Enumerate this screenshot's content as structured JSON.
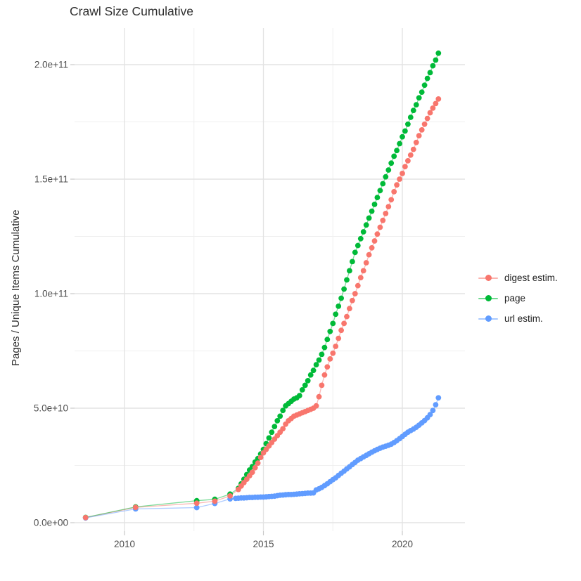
{
  "title": "Crawl Size Cumulative",
  "axes": {
    "y_label": "Pages / Unique Items Cumulative",
    "y_ticks": [
      {
        "label": "0.0e+00",
        "value_e9": 0
      },
      {
        "label": "5.0e+10",
        "value_e9": 50
      },
      {
        "label": "1.0e+11",
        "value_e9": 100
      },
      {
        "label": "1.5e+11",
        "value_e9": 150
      },
      {
        "label": "2.0e+11",
        "value_e9": 200
      }
    ],
    "y_minor_ticks_e9": [
      25,
      75,
      125,
      175
    ],
    "x_ticks": [
      {
        "label": "2010",
        "value": 2010
      },
      {
        "label": "2015",
        "value": 2015
      },
      {
        "label": "2020",
        "value": 2020
      }
    ],
    "x_minor_ticks": [
      2012.5,
      2017.5
    ]
  },
  "legend": {
    "items": [
      {
        "label": "digest estim."
      },
      {
        "label": "page"
      },
      {
        "label": "url estim."
      }
    ]
  },
  "style": {
    "grid_major_color": "#e3e3e3",
    "grid_minor_color": "#efefef",
    "tick_color": "#c9c9c9",
    "tick_label_color": "#4d4d4d",
    "title_color": "#2f2f2f",
    "background": "#ffffff",
    "line_opacity": 0.5,
    "point_radius": 3.9
  },
  "chart_data": {
    "type": "scatter",
    "title": "Crawl Size Cumulative",
    "xlabel": "",
    "ylabel": "Pages / Unique Items Cumulative",
    "x_unit": "year (decimal)",
    "y_unit_multiplier": 1000000000,
    "y_unit_note": "point y-values are in billions (multiply by 1e9)",
    "xlim": [
      2008.2,
      2022.25
    ],
    "ylim_e9": [
      -4,
      216
    ],
    "grid": true,
    "legend_position": "right",
    "series": [
      {
        "name": "digest estim.",
        "color": "#F8766D",
        "points": [
          [
            2008.6,
            2.2
          ],
          [
            2010.4,
            6.7
          ],
          [
            2012.6,
            8.5
          ],
          [
            2013.25,
            9.4
          ],
          [
            2013.8,
            11.7
          ],
          [
            2014.1,
            14.5
          ],
          [
            2014.2,
            16
          ],
          [
            2014.3,
            17.5
          ],
          [
            2014.4,
            19
          ],
          [
            2014.5,
            20.5
          ],
          [
            2014.6,
            22
          ],
          [
            2014.7,
            24
          ],
          [
            2014.8,
            26
          ],
          [
            2014.9,
            28.5
          ],
          [
            2015.0,
            30.5
          ],
          [
            2015.1,
            32
          ],
          [
            2015.2,
            33.5
          ],
          [
            2015.3,
            35
          ],
          [
            2015.4,
            36.5
          ],
          [
            2015.5,
            38
          ],
          [
            2015.6,
            39.5
          ],
          [
            2015.7,
            41
          ],
          [
            2015.8,
            43
          ],
          [
            2015.9,
            44.5
          ],
          [
            2016.0,
            45.5
          ],
          [
            2016.1,
            46.5
          ],
          [
            2016.2,
            47
          ],
          [
            2016.3,
            47.5
          ],
          [
            2016.4,
            48
          ],
          [
            2016.5,
            48.5
          ],
          [
            2016.6,
            49
          ],
          [
            2016.7,
            49.5
          ],
          [
            2016.8,
            50
          ],
          [
            2016.9,
            51
          ],
          [
            2017.0,
            55
          ],
          [
            2017.1,
            60
          ],
          [
            2017.2,
            64.5
          ],
          [
            2017.3,
            68
          ],
          [
            2017.4,
            71.5
          ],
          [
            2017.5,
            74
          ],
          [
            2017.6,
            77
          ],
          [
            2017.7,
            80.5
          ],
          [
            2017.8,
            84
          ],
          [
            2017.9,
            87
          ],
          [
            2018.0,
            90
          ],
          [
            2018.1,
            93.5
          ],
          [
            2018.2,
            97
          ],
          [
            2018.3,
            100
          ],
          [
            2018.4,
            103.5
          ],
          [
            2018.5,
            107
          ],
          [
            2018.6,
            110
          ],
          [
            2018.7,
            113.5
          ],
          [
            2018.8,
            117
          ],
          [
            2018.9,
            120
          ],
          [
            2019.0,
            123
          ],
          [
            2019.1,
            126
          ],
          [
            2019.2,
            129
          ],
          [
            2019.3,
            132
          ],
          [
            2019.4,
            135
          ],
          [
            2019.5,
            138
          ],
          [
            2019.6,
            141
          ],
          [
            2019.7,
            144.5
          ],
          [
            2019.8,
            147.5
          ],
          [
            2019.9,
            150
          ],
          [
            2020.0,
            152.5
          ],
          [
            2020.1,
            155.5
          ],
          [
            2020.2,
            158
          ],
          [
            2020.3,
            160.5
          ],
          [
            2020.4,
            163
          ],
          [
            2020.5,
            166
          ],
          [
            2020.6,
            169
          ],
          [
            2020.7,
            171.5
          ],
          [
            2020.8,
            174
          ],
          [
            2020.9,
            176.5
          ],
          [
            2021.0,
            179
          ],
          [
            2021.1,
            181
          ],
          [
            2021.2,
            183
          ],
          [
            2021.3,
            185
          ]
        ]
      },
      {
        "name": "page",
        "color": "#00BA38",
        "points": [
          [
            2008.6,
            2.3
          ],
          [
            2010.4,
            6.9
          ],
          [
            2012.6,
            9.6
          ],
          [
            2013.25,
            10.2
          ],
          [
            2013.8,
            12.5
          ],
          [
            2014.1,
            15
          ],
          [
            2014.2,
            17
          ],
          [
            2014.3,
            19
          ],
          [
            2014.4,
            21
          ],
          [
            2014.5,
            23
          ],
          [
            2014.6,
            24.5
          ],
          [
            2014.7,
            26.5
          ],
          [
            2014.8,
            28
          ],
          [
            2014.9,
            30
          ],
          [
            2015.0,
            32
          ],
          [
            2015.1,
            34.5
          ],
          [
            2015.2,
            37
          ],
          [
            2015.3,
            39.5
          ],
          [
            2015.4,
            42
          ],
          [
            2015.5,
            44.5
          ],
          [
            2015.6,
            46.5
          ],
          [
            2015.7,
            49
          ],
          [
            2015.8,
            51
          ],
          [
            2015.9,
            52
          ],
          [
            2016.0,
            53
          ],
          [
            2016.1,
            54
          ],
          [
            2016.2,
            54.5
          ],
          [
            2016.3,
            55.5
          ],
          [
            2016.4,
            58
          ],
          [
            2016.5,
            60
          ],
          [
            2016.6,
            62
          ],
          [
            2016.7,
            64.5
          ],
          [
            2016.8,
            66.5
          ],
          [
            2016.9,
            69
          ],
          [
            2017.0,
            71
          ],
          [
            2017.1,
            73.5
          ],
          [
            2017.2,
            76.5
          ],
          [
            2017.3,
            80
          ],
          [
            2017.4,
            83.5
          ],
          [
            2017.5,
            87
          ],
          [
            2017.6,
            91
          ],
          [
            2017.7,
            94.5
          ],
          [
            2017.8,
            98
          ],
          [
            2017.9,
            102
          ],
          [
            2018.0,
            106
          ],
          [
            2018.1,
            110
          ],
          [
            2018.2,
            114
          ],
          [
            2018.3,
            118
          ],
          [
            2018.4,
            121
          ],
          [
            2018.5,
            124
          ],
          [
            2018.6,
            127
          ],
          [
            2018.7,
            130
          ],
          [
            2018.8,
            133
          ],
          [
            2018.9,
            136
          ],
          [
            2019.0,
            139
          ],
          [
            2019.1,
            142
          ],
          [
            2019.2,
            145
          ],
          [
            2019.3,
            148
          ],
          [
            2019.4,
            151
          ],
          [
            2019.5,
            154
          ],
          [
            2019.6,
            157
          ],
          [
            2019.7,
            160
          ],
          [
            2019.8,
            162.5
          ],
          [
            2019.9,
            165.5
          ],
          [
            2020.0,
            168.5
          ],
          [
            2020.1,
            171
          ],
          [
            2020.2,
            174
          ],
          [
            2020.3,
            177
          ],
          [
            2020.4,
            180
          ],
          [
            2020.5,
            182.5
          ],
          [
            2020.6,
            185.5
          ],
          [
            2020.7,
            188
          ],
          [
            2020.8,
            191
          ],
          [
            2020.9,
            194
          ],
          [
            2021.0,
            196.5
          ],
          [
            2021.1,
            199.5
          ],
          [
            2021.2,
            202
          ],
          [
            2021.3,
            205
          ]
        ]
      },
      {
        "name": "url estim.",
        "color": "#619CFF",
        "points": [
          [
            2008.6,
            2.1
          ],
          [
            2010.4,
            6.0
          ],
          [
            2012.6,
            6.6
          ],
          [
            2013.25,
            8.4
          ],
          [
            2013.8,
            10.4
          ],
          [
            2014.0,
            10.6
          ],
          [
            2014.1,
            10.7
          ],
          [
            2014.2,
            10.8
          ],
          [
            2014.3,
            10.8
          ],
          [
            2014.4,
            10.9
          ],
          [
            2014.5,
            11.0
          ],
          [
            2014.6,
            11.0
          ],
          [
            2014.7,
            11.1
          ],
          [
            2014.8,
            11.1
          ],
          [
            2014.9,
            11.2
          ],
          [
            2015.0,
            11.2
          ],
          [
            2015.1,
            11.3
          ],
          [
            2015.2,
            11.4
          ],
          [
            2015.3,
            11.5
          ],
          [
            2015.4,
            11.6
          ],
          [
            2015.5,
            11.8
          ],
          [
            2015.6,
            12.0
          ],
          [
            2015.7,
            12.1
          ],
          [
            2015.8,
            12.2
          ],
          [
            2015.9,
            12.3
          ],
          [
            2016.0,
            12.3
          ],
          [
            2016.1,
            12.4
          ],
          [
            2016.2,
            12.5
          ],
          [
            2016.3,
            12.6
          ],
          [
            2016.4,
            12.7
          ],
          [
            2016.5,
            12.8
          ],
          [
            2016.6,
            12.9
          ],
          [
            2016.7,
            12.9
          ],
          [
            2016.8,
            13.0
          ],
          [
            2016.9,
            14.3
          ],
          [
            2017.0,
            14.8
          ],
          [
            2017.1,
            15.4
          ],
          [
            2017.2,
            16.2
          ],
          [
            2017.3,
            17.0
          ],
          [
            2017.4,
            17.9
          ],
          [
            2017.5,
            18.8
          ],
          [
            2017.6,
            19.6
          ],
          [
            2017.7,
            20.6
          ],
          [
            2017.8,
            21.6
          ],
          [
            2017.9,
            22.5
          ],
          [
            2018.0,
            23.5
          ],
          [
            2018.1,
            24.4
          ],
          [
            2018.2,
            25.4
          ],
          [
            2018.3,
            26.3
          ],
          [
            2018.4,
            27.3
          ],
          [
            2018.5,
            28.0
          ],
          [
            2018.6,
            28.7
          ],
          [
            2018.7,
            29.4
          ],
          [
            2018.8,
            30.1
          ],
          [
            2018.9,
            30.8
          ],
          [
            2019.0,
            31.4
          ],
          [
            2019.1,
            32.0
          ],
          [
            2019.2,
            32.5
          ],
          [
            2019.3,
            33.0
          ],
          [
            2019.4,
            33.4
          ],
          [
            2019.5,
            33.8
          ],
          [
            2019.6,
            34.3
          ],
          [
            2019.7,
            35.0
          ],
          [
            2019.8,
            35.8
          ],
          [
            2019.9,
            36.7
          ],
          [
            2020.0,
            37.6
          ],
          [
            2020.1,
            38.6
          ],
          [
            2020.2,
            39.5
          ],
          [
            2020.3,
            40.2
          ],
          [
            2020.4,
            40.9
          ],
          [
            2020.5,
            41.7
          ],
          [
            2020.6,
            42.6
          ],
          [
            2020.7,
            43.6
          ],
          [
            2020.8,
            44.6
          ],
          [
            2020.9,
            45.8
          ],
          [
            2021.0,
            47.2
          ],
          [
            2021.1,
            49.0
          ],
          [
            2021.2,
            51.5
          ],
          [
            2021.3,
            54.5
          ]
        ]
      }
    ]
  }
}
